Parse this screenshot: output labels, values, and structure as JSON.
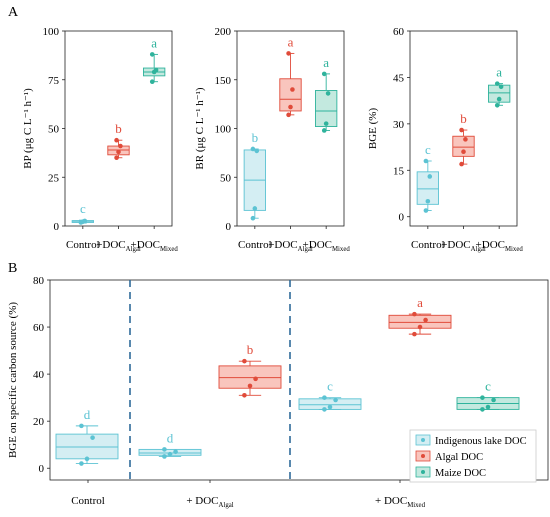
{
  "panel_labels": {
    "a": "A",
    "b": "B"
  },
  "colors": {
    "indigenous_fill": "#d4eef3",
    "indigenous_stroke": "#5cc3d3",
    "algal_fill": "#f9c5bd",
    "algal_stroke": "#e04b3a",
    "maize_fill": "#c3e9df",
    "maize_stroke": "#2fb39c",
    "divider": "#2f6b9a"
  },
  "chart_data": [
    {
      "type": "box",
      "ylabel": "BP (μg C L⁻¹ h⁻¹)",
      "ylim": [
        0,
        100
      ],
      "yticks": [
        0,
        25,
        50,
        75,
        100
      ],
      "categories": [
        {
          "label": "Control",
          "sub": ""
        },
        {
          "label": "+DOC",
          "sub": "Algal"
        },
        {
          "label": "+DOC",
          "sub": "Mixed"
        }
      ],
      "boxes": [
        {
          "cat": 0,
          "group": "indigenous",
          "min": 1.5,
          "q1": 1.8,
          "median": 2.2,
          "q3": 2.8,
          "max": 3.0,
          "points": [
            1.8,
            2.2,
            2.6
          ],
          "letter": "c"
        },
        {
          "cat": 1,
          "group": "algal",
          "min": 35,
          "q1": 36.5,
          "median": 39,
          "q3": 41,
          "max": 44,
          "points": [
            35,
            38,
            41,
            44
          ],
          "letter": "b"
        },
        {
          "cat": 2,
          "group": "maize",
          "min": 74,
          "q1": 77,
          "median": 79,
          "q3": 81,
          "max": 88,
          "points": [
            74,
            79,
            80,
            88
          ],
          "letter": "a"
        }
      ]
    },
    {
      "type": "box",
      "ylabel": "BR (μg C L⁻¹ h⁻¹)",
      "ylim": [
        0,
        200
      ],
      "yticks": [
        0,
        50,
        100,
        150,
        200
      ],
      "categories": [
        {
          "label": "Control",
          "sub": ""
        },
        {
          "label": "+DOC",
          "sub": "Algal"
        },
        {
          "label": "+DOC",
          "sub": "Mixed"
        }
      ],
      "boxes": [
        {
          "cat": 0,
          "group": "indigenous",
          "min": 8,
          "q1": 16,
          "median": 47,
          "q3": 78,
          "max": 79,
          "points": [
            8,
            18,
            77,
            79
          ],
          "letter": "b"
        },
        {
          "cat": 1,
          "group": "algal",
          "min": 114,
          "q1": 118,
          "median": 130,
          "q3": 151,
          "max": 177,
          "points": [
            114,
            122,
            140,
            177
          ],
          "letter": "a"
        },
        {
          "cat": 2,
          "group": "maize",
          "min": 98,
          "q1": 102,
          "median": 118,
          "q3": 139,
          "max": 156,
          "points": [
            98,
            105,
            136,
            156
          ],
          "letter": "a"
        }
      ]
    },
    {
      "type": "box",
      "ylabel": "BGE (%)",
      "ylim": [
        -3,
        60
      ],
      "yticks": [
        0,
        15,
        30,
        45,
        60
      ],
      "categories": [
        {
          "label": "Control",
          "sub": ""
        },
        {
          "label": "+DOC",
          "sub": "Algal"
        },
        {
          "label": "+DOC",
          "sub": "Mixed"
        }
      ],
      "boxes": [
        {
          "cat": 0,
          "group": "indigenous",
          "min": 2,
          "q1": 4,
          "median": 9,
          "q3": 14.5,
          "max": 18,
          "points": [
            2,
            5,
            13,
            18
          ],
          "letter": "c"
        },
        {
          "cat": 1,
          "group": "algal",
          "min": 17,
          "q1": 19.5,
          "median": 22.5,
          "q3": 26,
          "max": 28,
          "points": [
            17,
            21,
            25,
            28
          ],
          "letter": "b"
        },
        {
          "cat": 2,
          "group": "maize",
          "min": 36,
          "q1": 37,
          "median": 40,
          "q3": 42.5,
          "max": 43,
          "points": [
            36,
            38,
            42,
            43
          ],
          "letter": "a"
        }
      ]
    },
    {
      "type": "box",
      "ylabel": "BGE on specific carbon source (%)",
      "ylim": [
        -5,
        80
      ],
      "yticks": [
        0,
        20,
        40,
        60,
        80
      ],
      "groups": [
        {
          "label": "Control",
          "sub": ""
        },
        {
          "label": "+ DOC",
          "sub": "Algal"
        },
        {
          "label": "+ DOC",
          "sub": "Mixed"
        }
      ],
      "boxes": [
        {
          "slot": 0,
          "group": "indigenous",
          "min": 2,
          "q1": 4,
          "median": 9,
          "q3": 14.5,
          "max": 18,
          "points": [
            2,
            4,
            13,
            18
          ],
          "letter": "d"
        },
        {
          "slot": 1,
          "group": "indigenous",
          "min": 5,
          "q1": 5.5,
          "median": 6.5,
          "q3": 8,
          "max": 8,
          "points": [
            5,
            6,
            7,
            8
          ],
          "letter": "d"
        },
        {
          "slot": 2,
          "group": "algal",
          "min": 31,
          "q1": 34,
          "median": 38.5,
          "q3": 43.5,
          "max": 45.5,
          "points": [
            31,
            35,
            38,
            45.5
          ],
          "letter": "b"
        },
        {
          "slot": 3,
          "group": "indigenous",
          "min": 25,
          "q1": 25,
          "median": 27,
          "q3": 29.5,
          "max": 30,
          "points": [
            25,
            26,
            29,
            30
          ],
          "letter": "c"
        },
        {
          "slot": 4,
          "group": "algal",
          "min": 57,
          "q1": 59.5,
          "median": 62,
          "q3": 65,
          "max": 65.5,
          "points": [
            57,
            60,
            63,
            65.5
          ],
          "letter": "a"
        },
        {
          "slot": 5,
          "group": "maize",
          "min": 25,
          "q1": 25,
          "median": 27.5,
          "q3": 30,
          "max": 30,
          "points": [
            25,
            26,
            29,
            30
          ],
          "letter": "c"
        }
      ],
      "legend": {
        "position": "bottom-right",
        "entries": [
          {
            "group": "indigenous",
            "label": "Indigenous lake DOC"
          },
          {
            "group": "algal",
            "label": "Algal DOC"
          },
          {
            "group": "maize",
            "label": "Maize DOC"
          }
        ]
      }
    }
  ]
}
